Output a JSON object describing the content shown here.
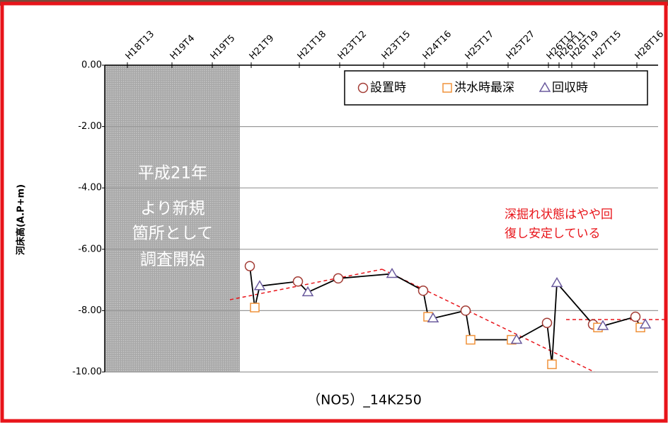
{
  "chart_data": {
    "type": "line",
    "title": "（NO5）_14K250",
    "y_label": "河床高(A.P+m)",
    "categories": [
      "H18T13",
      "H19T4",
      "H19T5",
      "H21T9",
      "H21T18",
      "H23T12",
      "H23T15",
      "H24T16",
      "H25T17",
      "H25T27",
      "H26T12",
      "H26T11",
      "H26T19",
      "H27T15",
      "H28T16"
    ],
    "series": [
      {
        "name": "設置時",
        "color": "#a23a33",
        "marker": "circle",
        "values": [
          null,
          null,
          null,
          -6.55,
          -7.05,
          -6.95,
          null,
          -7.35,
          -8.0,
          null,
          -8.4,
          null,
          null,
          -8.45,
          -8.2
        ]
      },
      {
        "name": "洪水時最深",
        "color": "#f0923a",
        "marker": "square",
        "values": [
          null,
          null,
          null,
          -7.9,
          null,
          null,
          null,
          -8.2,
          -8.95,
          -8.95,
          -9.75,
          null,
          null,
          -8.55,
          -8.55
        ]
      },
      {
        "name": "回収時",
        "color": "#6b5b9e",
        "marker": "triangle",
        "values": [
          null,
          null,
          null,
          -7.2,
          -7.4,
          null,
          -6.8,
          -8.25,
          null,
          -8.95,
          -7.1,
          null,
          null,
          -8.5,
          -8.45
        ]
      }
    ],
    "ylim": [
      -10,
      0
    ],
    "yticks": [
      {
        "value": 0,
        "label": "0.00"
      },
      {
        "value": -2,
        "label": "-2.00"
      },
      {
        "value": -4,
        "label": "-4.00"
      },
      {
        "value": -6,
        "label": "-6.00"
      },
      {
        "value": -8,
        "label": "-8.00"
      },
      {
        "value": -10,
        "label": "-10.00"
      }
    ],
    "grid": true,
    "legend": "top-right",
    "annotations": [
      {
        "text": [
          "平成21年",
          "より新規",
          "箇所として",
          "調査開始"
        ]
      },
      {
        "text": [
          "深掘れ状態はやや回",
          "復し安定している"
        ]
      }
    ]
  }
}
